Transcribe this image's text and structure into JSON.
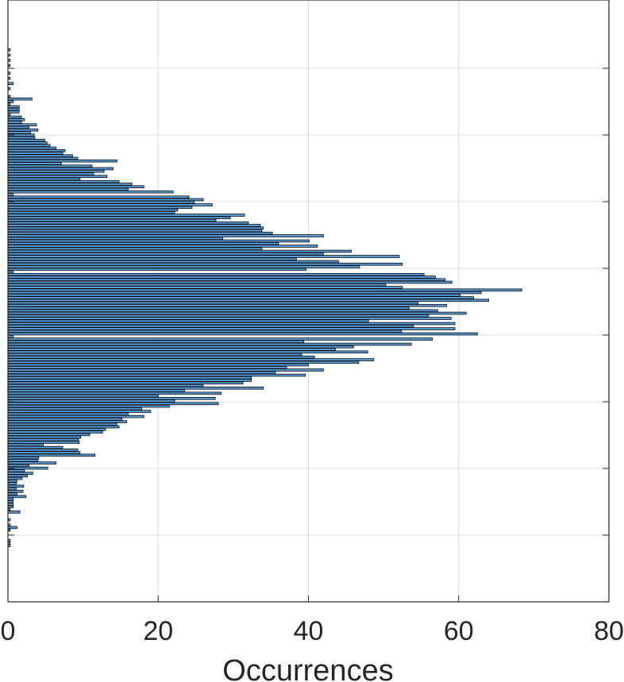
{
  "chart_data": {
    "type": "bar",
    "orientation": "horizontal",
    "title": "",
    "xlabel": "Occurrences",
    "ylabel": "",
    "xlim": [
      0,
      80
    ],
    "xticks": [
      0,
      20,
      40,
      60,
      80
    ],
    "xtick_labels": [
      "0",
      "20",
      "40",
      "60",
      "80"
    ],
    "ylim": [
      0,
      1
    ],
    "yticks_visible_labels": false,
    "grid": true,
    "bar_color": "#5b9bd5",
    "bar_edge_color": "#0a0a0a",
    "bins_top_to_bottom": [
      0.3,
      0,
      0.3,
      0,
      0.3,
      0,
      0.3,
      0,
      0,
      0.3,
      0,
      0.3,
      0,
      0.7,
      0,
      0.3,
      0,
      0,
      0.3,
      3.2,
      0.7,
      0.3,
      1.5,
      1.5,
      1.5,
      0.3,
      1.8,
      2.2,
      1.8,
      3.8,
      2.8,
      4,
      3,
      3.5,
      3.6,
      4.9,
      5.2,
      5.6,
      6.4,
      7.6,
      7.3,
      8.6,
      9.3,
      14.5,
      7.1,
      11.2,
      14,
      12.8,
      11.4,
      13.2,
      9.6,
      14.8,
      16.5,
      18.1,
      16,
      22,
      0.7,
      24.1,
      26,
      24.8,
      27.2,
      24.5,
      22.6,
      22.2,
      31.5,
      29.6,
      27.7,
      32,
      33.6,
      34,
      33.8,
      35.2,
      42,
      28.6,
      40.1,
      36,
      41.2,
      33.8,
      45.7,
      42,
      52.1,
      38.4,
      44,
      52.5,
      46.8,
      39.7,
      0.7,
      55.4,
      56.9,
      58.2,
      59.1,
      50.3,
      52.5,
      68.4,
      63,
      60.2,
      62,
      64,
      54.6,
      58.4,
      53.4,
      57.2,
      61,
      56,
      59,
      48,
      59.5,
      54,
      59.5,
      52.4,
      62.5,
      0.7,
      56.5,
      39.4,
      53.7,
      46,
      43.6,
      47.9,
      39.1,
      40.8,
      48.7,
      46.7,
      40,
      37.1,
      42,
      35.6,
      39.6,
      32.4,
      32.4,
      31.3,
      26,
      34,
      23.5,
      28.4,
      20,
      27.6,
      22.2,
      28,
      21.5,
      17.8,
      19,
      16,
      18.1,
      15.2,
      15.8,
      14.5,
      14.8,
      13,
      12.6,
      10.9,
      9.7,
      9.4,
      9.5,
      4.7,
      7.3,
      9.3,
      9.6,
      11.6,
      4.1,
      4,
      6.4,
      2.8,
      5.3,
      2.2,
      3.3,
      2.6,
      1.9,
      1.2,
      1.1,
      2.1,
      1.1,
      2,
      1.2,
      2.4,
      0.7,
      0.7,
      0.7,
      0.7,
      0.3,
      1.6,
      0,
      0,
      0.3,
      0,
      0.3,
      1.2,
      0.3,
      0,
      0,
      0,
      0.3,
      0.3,
      0.3
    ]
  }
}
